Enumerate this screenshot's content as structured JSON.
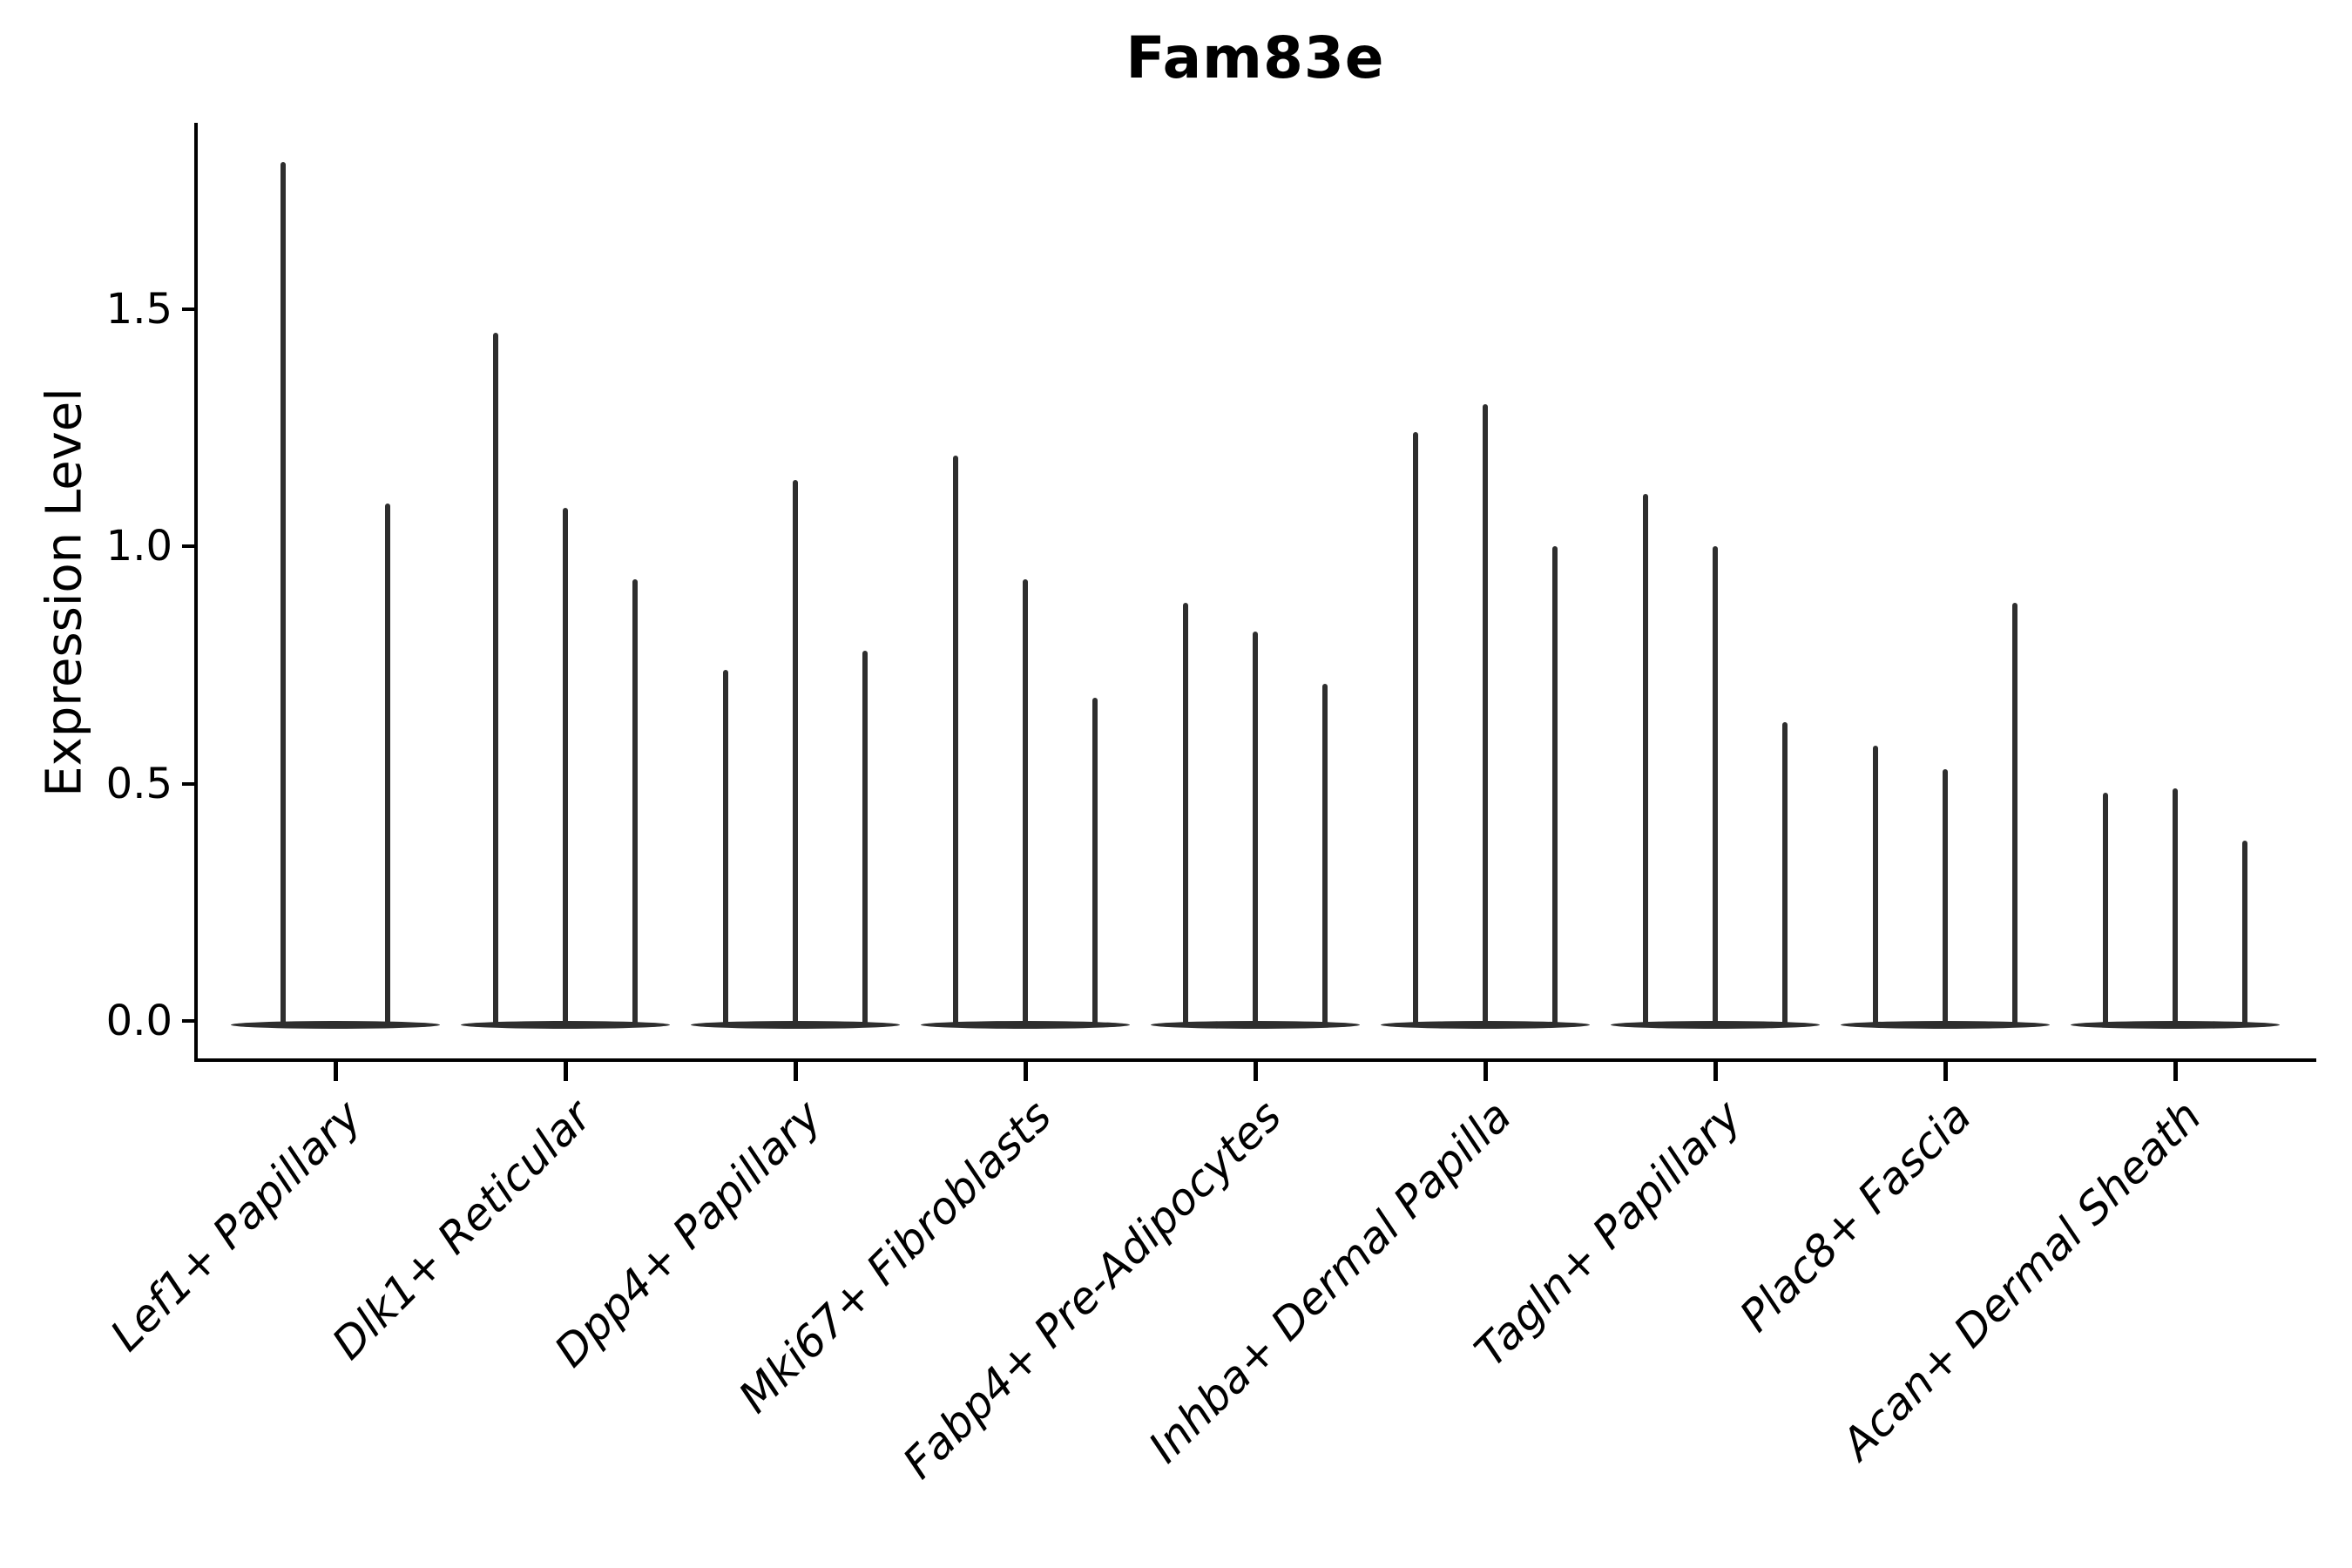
{
  "title": "Fam83e",
  "y_axis": {
    "label": "Expression Level",
    "tick_labels": [
      "0.0",
      "0.5",
      "1.0",
      "1.5"
    ],
    "tick_values": [
      0.0,
      0.5,
      1.0,
      1.5
    ]
  },
  "colors": {
    "violin": "#2e2e2e",
    "axis": "#000000",
    "text": "#000000",
    "background": "#ffffff"
  },
  "chart_data": {
    "type": "violin",
    "title": "Fam83e",
    "xlabel": "",
    "ylabel": "Expression Level",
    "ylim": [
      0,
      1.9
    ],
    "yticks": [
      0.0,
      0.5,
      1.0,
      1.5
    ],
    "grid": false,
    "legend": "none",
    "description": "Needle-thin violin plots of gene expression; each category shows 2-3 violins with a wide flat base at 0 and a thin spike up to the max expression value.",
    "categories": [
      "Lef1+ Papillary",
      "Dlk1+ Reticular",
      "Dpp4+ Papillary",
      "Mki67+ Fibroblasts",
      "Fabp4+ Pre-Adipocytes",
      "Inhba+ Dermal Papilla",
      "Tagln+ Papillary",
      "Plac8+ Fascia",
      "Acan+ Dermal Sheath"
    ],
    "max_values_per_category": [
      [
        1.81,
        1.09
      ],
      [
        1.45,
        1.08,
        0.93
      ],
      [
        0.74,
        1.14,
        0.78
      ],
      [
        1.19,
        0.93,
        0.68
      ],
      [
        0.88,
        0.82,
        0.71
      ],
      [
        1.24,
        1.3,
        1.0
      ],
      [
        1.11,
        1.0,
        0.63
      ],
      [
        0.58,
        0.53,
        0.88
      ],
      [
        0.48,
        0.49,
        0.38
      ]
    ]
  }
}
